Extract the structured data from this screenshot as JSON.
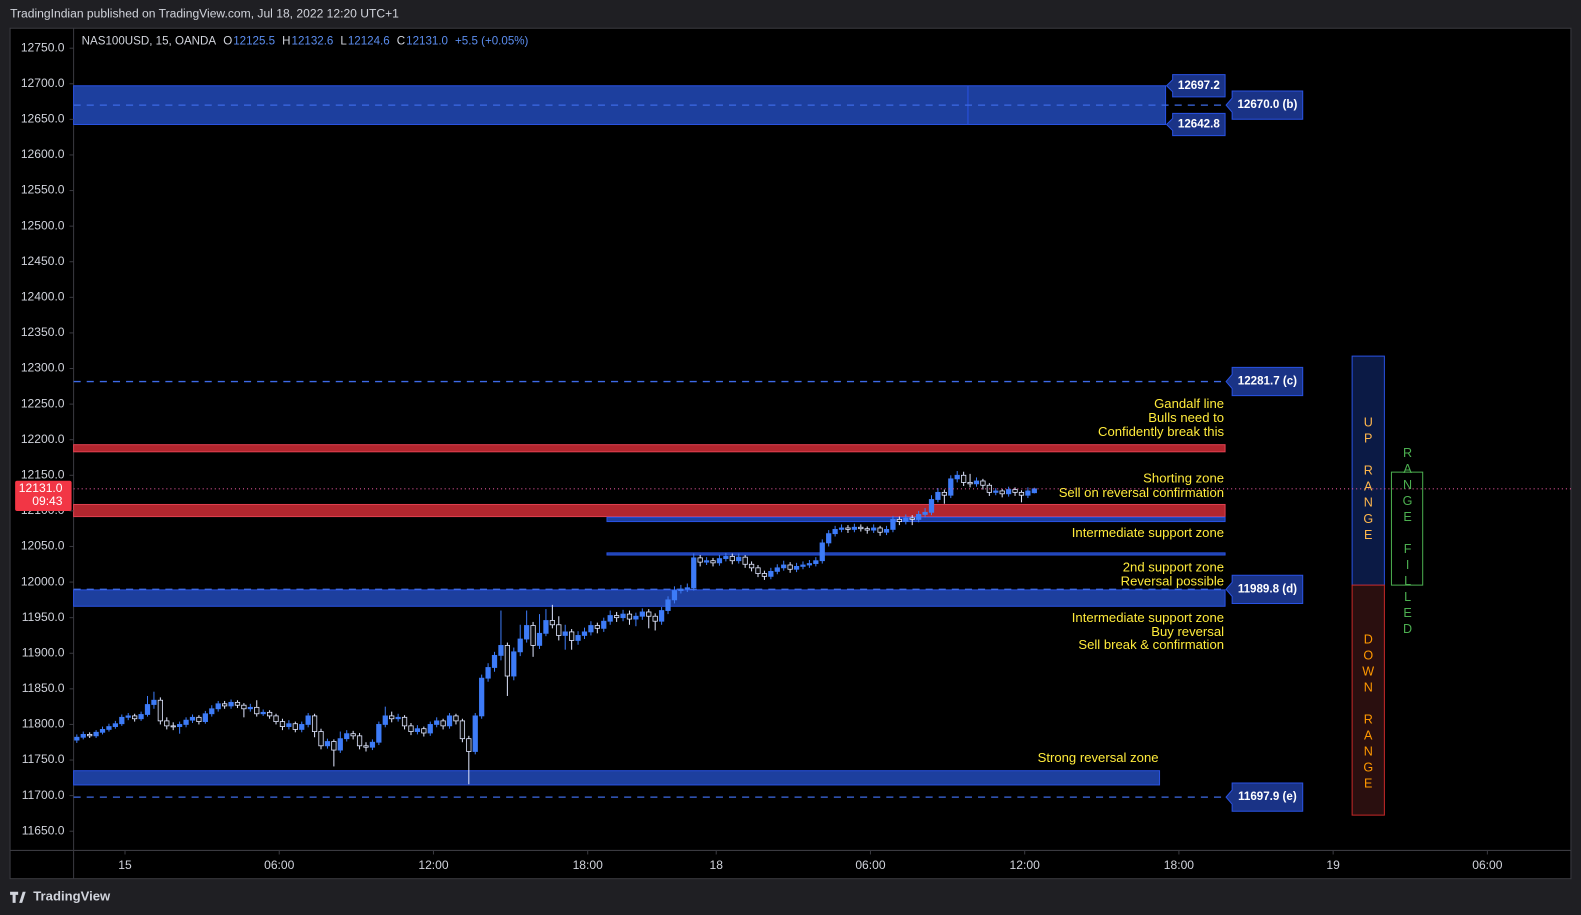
{
  "header": {
    "published": "TradingIndian published on TradingView.com, Jul 18, 2022 12:20 UTC+1"
  },
  "footer": {
    "brand": "TradingView"
  },
  "chart_data": {
    "type": "candlestick",
    "legend": {
      "symbol": "NAS100USD, 15, OANDA",
      "items": [
        {
          "key": "O",
          "value": "12125.5"
        },
        {
          "key": "H",
          "value": "12132.6"
        },
        {
          "key": "L",
          "value": "12124.6"
        },
        {
          "key": "C",
          "value": "12131.0"
        }
      ],
      "change": "+5.5 (+0.05%)"
    },
    "up_color": "#3d7bf7",
    "down_color": "#dfe6ff",
    "ohlc": [
      [
        11778,
        11786,
        11774,
        11782
      ],
      [
        11782,
        11790,
        11779,
        11786
      ],
      [
        11786,
        11789,
        11781,
        11784
      ],
      [
        11784,
        11792,
        11781,
        11789
      ],
      [
        11789,
        11797,
        11786,
        11793
      ],
      [
        11793,
        11801,
        11790,
        11797
      ],
      [
        11797,
        11805,
        11794,
        11801
      ],
      [
        11801,
        11814,
        11798,
        11810
      ],
      [
        11810,
        11816,
        11806,
        11812
      ],
      [
        11812,
        11815,
        11804,
        11808
      ],
      [
        11808,
        11818,
        11805,
        11814
      ],
      [
        11814,
        11840,
        11811,
        11828
      ],
      [
        11828,
        11846,
        11822,
        11834
      ],
      [
        11834,
        11838,
        11800,
        11805
      ],
      [
        11805,
        11810,
        11793,
        11798
      ],
      [
        11798,
        11803,
        11792,
        11797
      ],
      [
        11797,
        11804,
        11787,
        11800
      ],
      [
        11800,
        11810,
        11796,
        11806
      ],
      [
        11806,
        11814,
        11802,
        11810
      ],
      [
        11810,
        11813,
        11800,
        11804
      ],
      [
        11804,
        11819,
        11801,
        11815
      ],
      [
        11815,
        11827,
        11811,
        11822
      ],
      [
        11822,
        11833,
        11818,
        11829
      ],
      [
        11829,
        11833,
        11822,
        11826
      ],
      [
        11826,
        11835,
        11822,
        11831
      ],
      [
        11831,
        11834,
        11823,
        11827
      ],
      [
        11827,
        11830,
        11810,
        11822
      ],
      [
        11822,
        11829,
        11818,
        11824
      ],
      [
        11824,
        11834,
        11811,
        11815
      ],
      [
        11815,
        11821,
        11812,
        11817
      ],
      [
        11817,
        11820,
        11808,
        11812
      ],
      [
        11812,
        11815,
        11800,
        11804
      ],
      [
        11804,
        11808,
        11792,
        11797
      ],
      [
        11797,
        11806,
        11793,
        11801
      ],
      [
        11801,
        11804,
        11789,
        11793
      ],
      [
        11793,
        11804,
        11789,
        11800
      ],
      [
        11800,
        11816,
        11796,
        11812
      ],
      [
        11812,
        11815,
        11782,
        11790
      ],
      [
        11790,
        11794,
        11765,
        11770
      ],
      [
        11770,
        11780,
        11766,
        11776
      ],
      [
        11776,
        11779,
        11741,
        11764
      ],
      [
        11764,
        11790,
        11760,
        11780
      ],
      [
        11780,
        11792,
        11776,
        11787
      ],
      [
        11787,
        11791,
        11779,
        11784
      ],
      [
        11784,
        11788,
        11765,
        11770
      ],
      [
        11770,
        11775,
        11762,
        11768
      ],
      [
        11768,
        11779,
        11764,
        11775
      ],
      [
        11775,
        11804,
        11771,
        11800
      ],
      [
        11800,
        11825,
        11796,
        11812
      ],
      [
        11812,
        11818,
        11803,
        11808
      ],
      [
        11808,
        11815,
        11804,
        11810
      ],
      [
        11810,
        11813,
        11793,
        11798
      ],
      [
        11798,
        11802,
        11785,
        11790
      ],
      [
        11790,
        11799,
        11786,
        11794
      ],
      [
        11794,
        11797,
        11783,
        11788
      ],
      [
        11788,
        11804,
        11784,
        11800
      ],
      [
        11800,
        11810,
        11796,
        11805
      ],
      [
        11805,
        11808,
        11793,
        11798
      ],
      [
        11798,
        11816,
        11794,
        11812
      ],
      [
        11812,
        11815,
        11800,
        11805
      ],
      [
        11805,
        11808,
        11775,
        11780
      ],
      [
        11780,
        11784,
        11716,
        11762
      ],
      [
        11762,
        11816,
        11758,
        11812
      ],
      [
        11812,
        11870,
        11808,
        11865
      ],
      [
        11865,
        11886,
        11860,
        11880
      ],
      [
        11880,
        11902,
        11874,
        11897
      ],
      [
        11897,
        11960,
        11890,
        11911
      ],
      [
        11911,
        11915,
        11840,
        11868
      ],
      [
        11868,
        11908,
        11862,
        11902
      ],
      [
        11902,
        11940,
        11896,
        11920
      ],
      [
        11920,
        11960,
        11915,
        11939
      ],
      [
        11939,
        11944,
        11895,
        11911
      ],
      [
        11911,
        11955,
        11906,
        11928
      ],
      [
        11928,
        11962,
        11924,
        11946
      ],
      [
        11946,
        11968,
        11935,
        11940
      ],
      [
        11940,
        11952,
        11918,
        11925
      ],
      [
        11925,
        11940,
        11905,
        11930
      ],
      [
        11930,
        11934,
        11905,
        11918
      ],
      [
        11918,
        11931,
        11912,
        11925
      ],
      [
        11925,
        11936,
        11920,
        11930
      ],
      [
        11930,
        11945,
        11925,
        11939
      ],
      [
        11939,
        11943,
        11928,
        11935
      ],
      [
        11935,
        11950,
        11930,
        11945
      ],
      [
        11945,
        11960,
        11940,
        11953
      ],
      [
        11953,
        11958,
        11944,
        11950
      ],
      [
        11950,
        11961,
        11945,
        11955
      ],
      [
        11955,
        11960,
        11940,
        11948
      ],
      [
        11948,
        11957,
        11938,
        11952
      ],
      [
        11952,
        11963,
        11947,
        11958
      ],
      [
        11958,
        11962,
        11935,
        11952
      ],
      [
        11952,
        11956,
        11932,
        11945
      ],
      [
        11945,
        11965,
        11940,
        11960
      ],
      [
        11960,
        11980,
        11955,
        11975
      ],
      [
        11975,
        11994,
        11970,
        11988
      ],
      [
        11988,
        11996,
        11984,
        11990
      ],
      [
        11990,
        11998,
        11986,
        11992
      ],
      [
        11992,
        12040,
        11988,
        12034
      ],
      [
        12034,
        12038,
        12022,
        12028
      ],
      [
        12028,
        12035,
        12024,
        12030
      ],
      [
        12030,
        12034,
        12022,
        12027
      ],
      [
        12027,
        12038,
        12023,
        12033
      ],
      [
        12033,
        12041,
        12029,
        12036
      ],
      [
        12036,
        12040,
        12025,
        12030
      ],
      [
        12030,
        12040,
        12026,
        12035
      ],
      [
        12035,
        12038,
        12020,
        12025
      ],
      [
        12025,
        12029,
        12015,
        12020
      ],
      [
        12020,
        12024,
        12007,
        12012
      ],
      [
        12012,
        12016,
        12003,
        12008
      ],
      [
        12008,
        12020,
        12004,
        12015
      ],
      [
        12015,
        12025,
        12011,
        12020
      ],
      [
        12020,
        12030,
        12016,
        12024
      ],
      [
        12024,
        12028,
        12013,
        12018
      ],
      [
        12018,
        12027,
        12014,
        12022
      ],
      [
        12022,
        12029,
        12018,
        12024
      ],
      [
        12024,
        12031,
        12020,
        12026
      ],
      [
        12026,
        12035,
        12022,
        12030
      ],
      [
        12030,
        12060,
        12026,
        12055
      ],
      [
        12055,
        12073,
        12050,
        12068
      ],
      [
        12068,
        12079,
        12064,
        12074
      ],
      [
        12074,
        12081,
        12070,
        12076
      ],
      [
        12076,
        12080,
        12069,
        12074
      ],
      [
        12074,
        12082,
        12070,
        12077
      ],
      [
        12077,
        12081,
        12071,
        12075
      ],
      [
        12075,
        12078,
        12068,
        12073
      ],
      [
        12073,
        12081,
        12069,
        12076
      ],
      [
        12076,
        12079,
        12065,
        12070
      ],
      [
        12070,
        12079,
        12066,
        12074
      ],
      [
        12074,
        12093,
        12070,
        12088
      ],
      [
        12088,
        12092,
        12080,
        12085
      ],
      [
        12085,
        12095,
        12081,
        12090
      ],
      [
        12090,
        12094,
        12080,
        12088
      ],
      [
        12088,
        12100,
        12084,
        12095
      ],
      [
        12095,
        12104,
        12091,
        12098
      ],
      [
        12098,
        12122,
        12094,
        12116
      ],
      [
        12116,
        12132,
        12112,
        12126
      ],
      [
        12126,
        12130,
        12110,
        12122
      ],
      [
        12122,
        12150,
        12118,
        12145
      ],
      [
        12145,
        12156,
        12140,
        12150
      ],
      [
        12150,
        12155,
        12135,
        12140
      ],
      [
        12140,
        12152,
        12133,
        12138
      ],
      [
        12138,
        12147,
        12134,
        12142
      ],
      [
        12142,
        12145,
        12130,
        12136
      ],
      [
        12136,
        12139,
        12121,
        12126
      ],
      [
        12126,
        12132,
        12122,
        12128
      ],
      [
        12128,
        12131,
        12119,
        12124
      ],
      [
        12124,
        12134,
        12120,
        12130
      ],
      [
        12130,
        12133,
        12121,
        12126
      ],
      [
        12126,
        12129,
        12112,
        12122
      ],
      [
        12122,
        12133,
        12118,
        12128
      ],
      [
        12125.5,
        12132.6,
        12124.6,
        12131.0
      ]
    ],
    "xlim": [
      0,
      233
    ],
    "xticks": [
      {
        "value": 8,
        "label": "15"
      },
      {
        "value": 32,
        "label": "06:00"
      },
      {
        "value": 56,
        "label": "12:00"
      },
      {
        "value": 80,
        "label": "18:00"
      },
      {
        "value": 100,
        "label": "18"
      },
      {
        "value": 124,
        "label": "06:00"
      },
      {
        "value": 148,
        "label": "12:00"
      },
      {
        "value": 172,
        "label": "18:00"
      },
      {
        "value": 196,
        "label": "19"
      },
      {
        "value": 220,
        "label": "06:00"
      }
    ],
    "ylim": [
      11623,
      12778
    ],
    "yticks": [
      {
        "value": 11650,
        "label": "11650.0"
      },
      {
        "value": 11700,
        "label": "11700.0"
      },
      {
        "value": 11750,
        "label": "11750.0"
      },
      {
        "value": 11800,
        "label": "11800.0"
      },
      {
        "value": 11850,
        "label": "11850.0"
      },
      {
        "value": 11900,
        "label": "11900.0"
      },
      {
        "value": 11950,
        "label": "11950.0"
      },
      {
        "value": 12000,
        "label": "12000.0"
      },
      {
        "value": 12050,
        "label": "12050.0"
      },
      {
        "value": 12100,
        "label": "12100.0"
      },
      {
        "value": 12150,
        "label": "12150.0"
      },
      {
        "value": 12200,
        "label": "12200.0"
      },
      {
        "value": 12250,
        "label": "12250.0"
      },
      {
        "value": 12300,
        "label": "12300.0"
      },
      {
        "value": 12350,
        "label": "12350.0"
      },
      {
        "value": 12400,
        "label": "12400.0"
      },
      {
        "value": 12450,
        "label": "12450.0"
      },
      {
        "value": 12500,
        "label": "12500.0"
      },
      {
        "value": 12550,
        "label": "12550.0"
      },
      {
        "value": 12600,
        "label": "12600.0"
      },
      {
        "value": 12650,
        "label": "12650.0"
      },
      {
        "value": 12700,
        "label": "12700.0"
      },
      {
        "value": 12750,
        "label": "12750.0"
      }
    ],
    "last_price": {
      "label": "12131.0",
      "countdown": "09:43",
      "color": "#f23645"
    },
    "zones": [
      {
        "top": {
          "value": 12697.2,
          "label": "12697.2"
        },
        "bottom": {
          "value": 12642.8,
          "label": "12642.8"
        },
        "color": "#1d3f9e"
      },
      {
        "top": 12193,
        "bottom": 12183,
        "color": "#b2262e"
      },
      {
        "top": 12109,
        "bottom": 12092,
        "color": "#b2262e"
      },
      {
        "top": 12091,
        "bottom": 12085,
        "color": "#1d3f9e"
      },
      {
        "top": 12041,
        "bottom": 12038,
        "color": "#1d3f9e"
      },
      {
        "top": 11989,
        "bottom": 11966,
        "color": "#1d3f9e"
      },
      {
        "top": 11735,
        "bottom": 11715,
        "color": "#1d3f9e"
      }
    ],
    "levels": [
      {
        "value": 12670,
        "label": "12670.0 (b)"
      },
      {
        "value": 12281.7,
        "label": "12281.7 (c)"
      },
      {
        "value": 11989.8,
        "label": "11989.8 (d)"
      },
      {
        "value": 11697.9,
        "label": "11697.9 (e)"
      }
    ],
    "annotations": [
      [
        "Gandalf line",
        "Bulls need to ",
        "Confidently break this"
      ],
      [
        "Shorting zone",
        "Sell on reversal confirmation"
      ],
      [
        "Intermediate support zone"
      ],
      [
        "2nd support zone",
        "Reversal possible"
      ],
      [
        "Intermediate support zone",
        "Buy reversal",
        "Sell break & confirmation"
      ],
      [
        "Strong reversal zone"
      ]
    ],
    "ranges": [
      {
        "label": "UP RANGE",
        "color": "#ffb74d"
      },
      {
        "label": "DOWN RANGE",
        "color": "#ff9800"
      },
      {
        "label": "RANGE FILLED",
        "color": "#4caf50"
      }
    ]
  }
}
